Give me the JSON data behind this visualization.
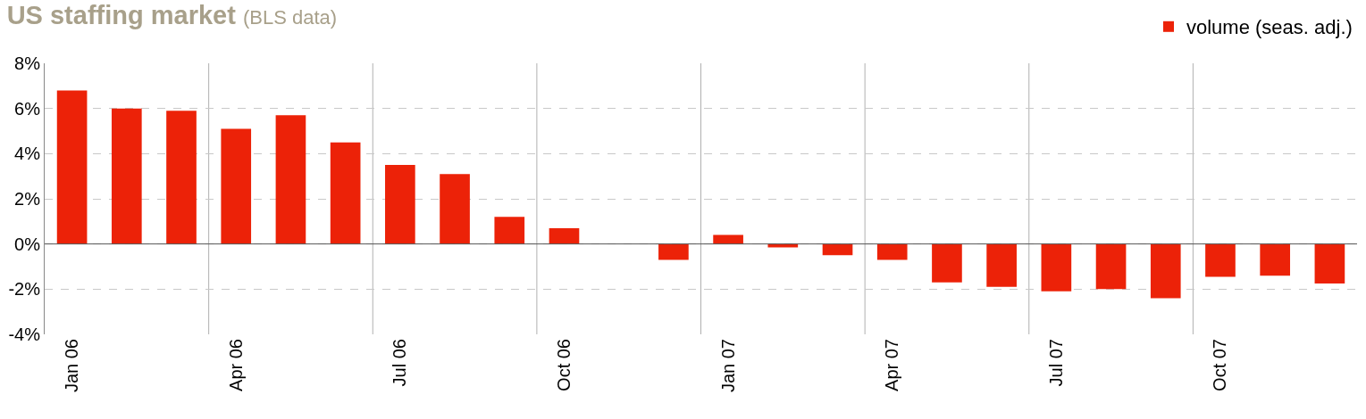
{
  "chart_data": {
    "type": "bar",
    "title": "US staffing market",
    "subtitle": "(BLS data)",
    "categories": [
      "Jan 06",
      null,
      null,
      "Apr 06",
      null,
      null,
      "Jul 06",
      null,
      null,
      "Oct 06",
      null,
      null,
      "Jan 07",
      null,
      null,
      "Apr 07",
      null,
      null,
      "Jul 07",
      null,
      null,
      "Oct 07",
      null,
      null
    ],
    "series": [
      {
        "name": "volume (seas. adj.)",
        "color": "#ec2208",
        "values": [
          6.8,
          6.0,
          5.9,
          5.1,
          5.7,
          4.5,
          3.5,
          3.1,
          1.2,
          0.7,
          0,
          -0.7,
          0.4,
          -0.15,
          -0.5,
          -0.7,
          -1.7,
          -1.9,
          -2.1,
          -2.0,
          -2.4,
          -1.45,
          -1.4,
          -1.75
        ]
      }
    ],
    "ylim": [
      -4,
      8
    ],
    "yticks": [
      {
        "value": -4,
        "label": "-4%"
      },
      {
        "value": -2,
        "label": "-2%"
      },
      {
        "value": 0,
        "label": "0%"
      },
      {
        "value": 2,
        "label": "2%"
      },
      {
        "value": 4,
        "label": "4%"
      },
      {
        "value": 6,
        "label": "6%"
      },
      {
        "value": 8,
        "label": "8%"
      }
    ],
    "grid": true,
    "legend": "top right"
  }
}
